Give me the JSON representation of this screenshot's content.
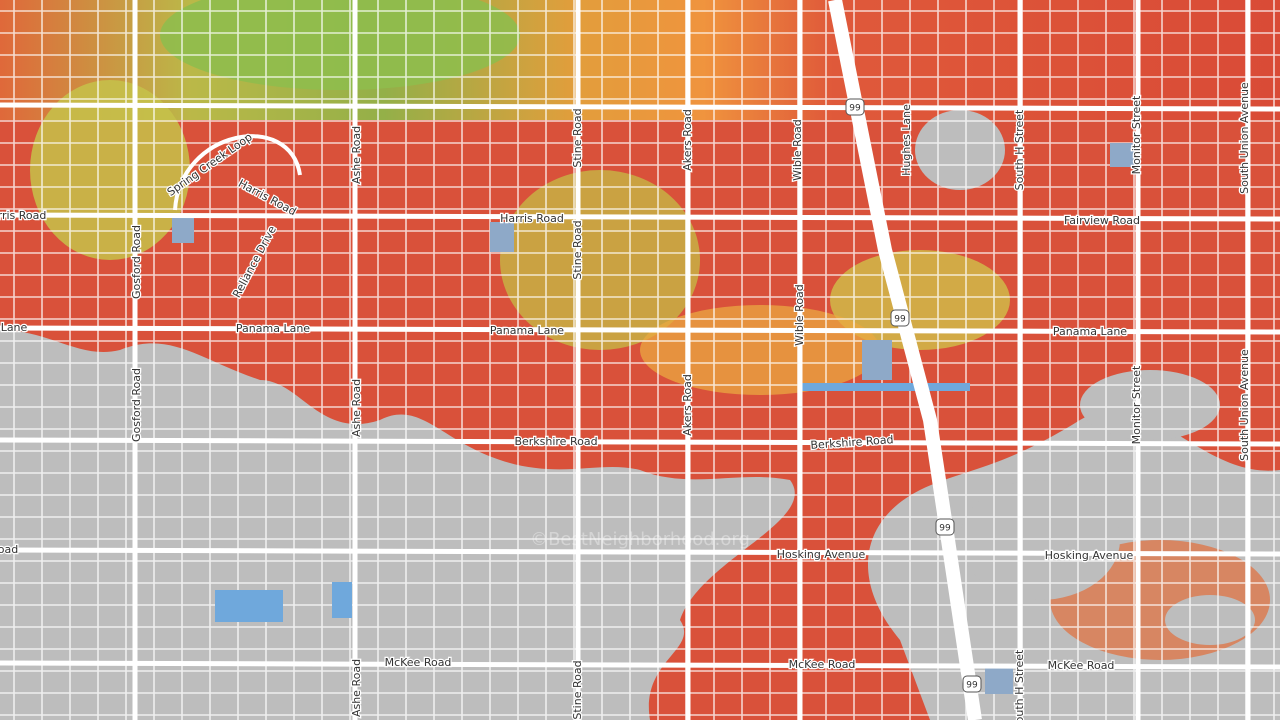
{
  "map": {
    "street_labels": [
      "rris Road",
      "Harris Road",
      "Harris Road",
      "Fairview Road",
      "Lane",
      "Panama Lane",
      "Panama Lane",
      "Panama Lane",
      "Berkshire Road",
      "Berkshire Road",
      "oad",
      "Hosking Avenue",
      "Hosking Avenue",
      "McKee Road",
      "McKee Road",
      "McKee Road",
      "Gosford Road",
      "Gosford Road",
      "Ashe Road",
      "Ashe Road",
      "Ashe Road",
      "Stine Road",
      "Stine Road",
      "Stine Road",
      "Akers Road",
      "Akers Road",
      "Wible Road",
      "Wible Road",
      "Hughes Lane",
      "South H Street",
      "South H Street",
      "Monitor Street",
      "Monitor Street",
      "South Union Avenue",
      "South Union Avenue",
      "Spring Creek Loop",
      "Reliance Drive"
    ],
    "highway_shields": [
      "99",
      "99",
      "99",
      "99"
    ],
    "watermark": "©BestNeighborhood.org"
  }
}
